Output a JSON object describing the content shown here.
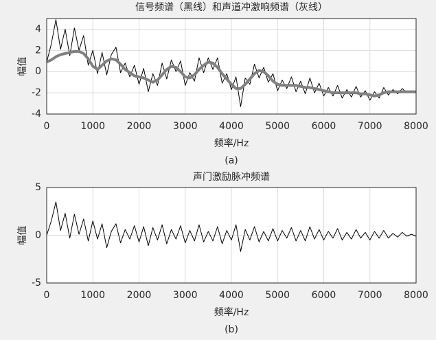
{
  "chart_data": [
    {
      "type": "line",
      "title": "信号频谱（黑线）和声道冲激响频谱（灰线）",
      "xlabel": "频率/Hz",
      "ylabel": "幅值",
      "caption": "(a)",
      "x": [
        0,
        100,
        200,
        300,
        400,
        500,
        600,
        700,
        800,
        900,
        1000,
        1100,
        1200,
        1300,
        1400,
        1500,
        1600,
        1700,
        1800,
        1900,
        2000,
        2100,
        2200,
        2300,
        2400,
        2500,
        2600,
        2700,
        2800,
        2900,
        3000,
        3100,
        3200,
        3300,
        3400,
        3500,
        3600,
        3700,
        3800,
        3900,
        4000,
        4100,
        4200,
        4300,
        4400,
        4500,
        4600,
        4700,
        4800,
        4900,
        5000,
        5100,
        5200,
        5300,
        5400,
        5500,
        5600,
        5700,
        5800,
        5900,
        6000,
        6100,
        6200,
        6300,
        6400,
        6500,
        6600,
        6700,
        6800,
        6900,
        7000,
        7100,
        7200,
        7300,
        7400,
        7500,
        7600,
        7700,
        7800,
        7900,
        8000
      ],
      "series": [
        {
          "color": "#000000",
          "values": [
            0.9,
            2.6,
            4.9,
            2.1,
            4.0,
            1.5,
            4.1,
            2.0,
            3.4,
            0.6,
            2.0,
            -0.2,
            1.8,
            -0.3,
            1.6,
            2.3,
            -0.1,
            0.8,
            -0.5,
            0.6,
            -1.2,
            0.3,
            -1.9,
            -0.2,
            -1.3,
            0.8,
            -0.7,
            1.1,
            0.0,
            1.0,
            -1.3,
            -0.1,
            -0.9,
            1.3,
            -0.1,
            1.3,
            0.2,
            1.3,
            -1.1,
            -0.2,
            -1.7,
            -0.5,
            -3.3,
            -0.6,
            -1.2,
            0.7,
            -0.6,
            0.4,
            -1.0,
            -0.2,
            -1.8,
            -0.8,
            -1.6,
            -0.5,
            -1.9,
            -0.9,
            -2.1,
            -0.6,
            -2.0,
            -1.1,
            -2.3,
            -1.5,
            -2.3,
            -1.3,
            -2.5,
            -1.7,
            -2.4,
            -1.4,
            -2.4,
            -1.8,
            -2.7,
            -1.9,
            -2.5,
            -1.5,
            -2.2,
            -1.7,
            -2.1,
            -1.6,
            -2.0,
            -1.8,
            -2.0
          ]
        },
        {
          "color": "#808080",
          "values": [
            0.9,
            1.1,
            1.4,
            1.6,
            1.7,
            1.8,
            1.9,
            1.9,
            1.7,
            1.2,
            0.5,
            0.2,
            0.6,
            1.0,
            1.2,
            1.1,
            0.7,
            0.2,
            -0.1,
            -0.4,
            -0.5,
            -0.6,
            -0.8,
            -1.0,
            -0.8,
            -0.3,
            0.2,
            0.5,
            0.4,
            0.0,
            -0.5,
            -0.6,
            -0.3,
            0.2,
            0.6,
            0.9,
            0.8,
            0.4,
            -0.2,
            -0.7,
            -1.2,
            -1.6,
            -1.6,
            -1.2,
            -0.7,
            -0.2,
            0.1,
            0.0,
            -0.4,
            -0.9,
            -1.2,
            -1.3,
            -1.3,
            -1.3,
            -1.3,
            -1.4,
            -1.5,
            -1.5,
            -1.6,
            -1.7,
            -1.8,
            -1.9,
            -2.0,
            -2.0,
            -2.0,
            -2.0,
            -2.0,
            -2.0,
            -2.1,
            -2.1,
            -2.2,
            -2.3,
            -2.2,
            -2.0,
            -1.9,
            -1.9,
            -1.9,
            -1.9,
            -1.9,
            -1.9,
            -1.9
          ]
        }
      ],
      "xlim": [
        0,
        8000
      ],
      "ylim": [
        -4,
        5
      ],
      "xticks": [
        0,
        1000,
        2000,
        3000,
        4000,
        5000,
        6000,
        7000,
        8000
      ],
      "yticks": [
        -4,
        -2,
        0,
        2,
        4
      ],
      "grid": true
    },
    {
      "type": "line",
      "title": "声门激励脉冲频谱",
      "xlabel": "频率/Hz",
      "ylabel": "幅值",
      "caption": "(b)",
      "x": [
        0,
        100,
        200,
        300,
        400,
        500,
        600,
        700,
        800,
        900,
        1000,
        1100,
        1200,
        1300,
        1400,
        1500,
        1600,
        1700,
        1800,
        1900,
        2000,
        2100,
        2200,
        2300,
        2400,
        2500,
        2600,
        2700,
        2800,
        2900,
        3000,
        3100,
        3200,
        3300,
        3400,
        3500,
        3600,
        3700,
        3800,
        3900,
        4000,
        4100,
        4200,
        4300,
        4400,
        4500,
        4600,
        4700,
        4800,
        4900,
        5000,
        5100,
        5200,
        5300,
        5400,
        5500,
        5600,
        5700,
        5800,
        5900,
        6000,
        6100,
        6200,
        6300,
        6400,
        6500,
        6600,
        6700,
        6800,
        6900,
        7000,
        7100,
        7200,
        7300,
        7400,
        7500,
        7600,
        7700,
        7800,
        7900,
        8000
      ],
      "series": [
        {
          "color": "#000000",
          "values": [
            0,
            1.5,
            3.5,
            0.5,
            2.3,
            -0.3,
            2.2,
            0.1,
            1.7,
            -0.6,
            1.5,
            -0.4,
            1.2,
            -1.3,
            0.4,
            1.2,
            -0.8,
            0.6,
            -0.4,
            1.0,
            -0.7,
            0.9,
            -1.1,
            0.8,
            -0.5,
            1.1,
            -0.9,
            0.6,
            -0.4,
            1.0,
            -0.8,
            0.5,
            -0.6,
            1.1,
            -0.7,
            0.4,
            -0.6,
            0.9,
            -0.9,
            0.5,
            -0.5,
            1.1,
            -1.7,
            0.6,
            -0.5,
            0.9,
            -0.7,
            0.4,
            -0.6,
            0.7,
            -0.6,
            0.5,
            -0.3,
            0.8,
            -0.6,
            0.5,
            -0.6,
            0.9,
            -0.4,
            0.6,
            -0.5,
            0.4,
            -0.3,
            0.7,
            -0.5,
            0.3,
            -0.4,
            0.6,
            -0.3,
            0.3,
            -0.5,
            0.4,
            -0.3,
            0.5,
            -0.3,
            0.2,
            -0.2,
            0.3,
            -0.1,
            0.1,
            -0.1
          ]
        }
      ],
      "xlim": [
        0,
        8000
      ],
      "ylim": [
        -5,
        5
      ],
      "xticks": [
        0,
        1000,
        2000,
        3000,
        4000,
        5000,
        6000,
        7000,
        8000
      ],
      "yticks": [
        -5,
        0,
        5
      ],
      "grid": true
    }
  ]
}
